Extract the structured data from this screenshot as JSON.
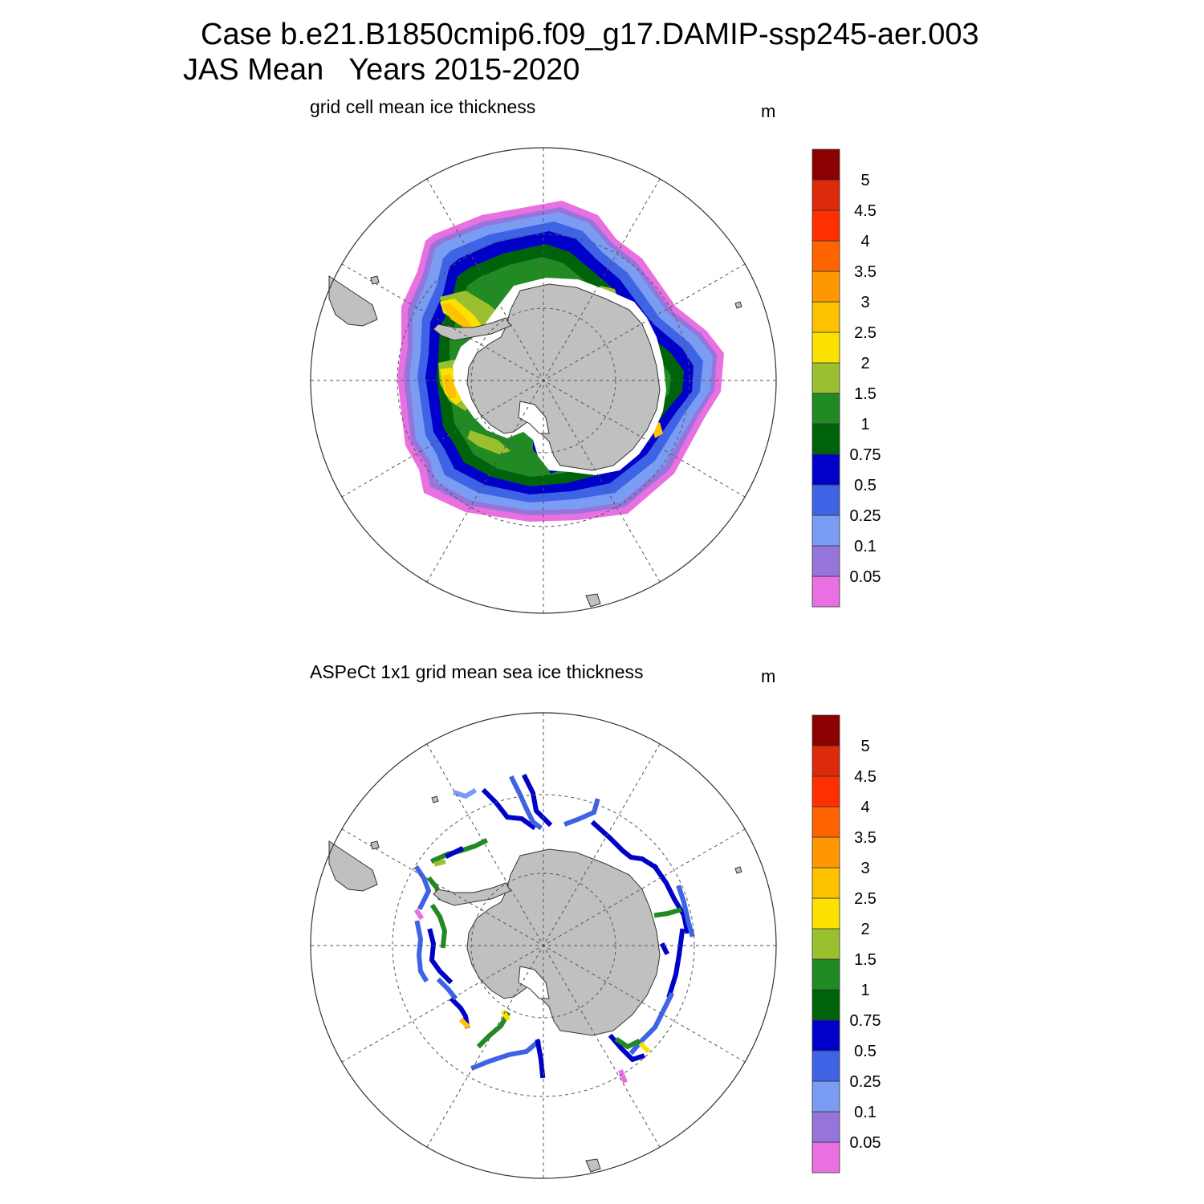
{
  "header": {
    "title_line1": "Case b.e21.B1850cmip6.f09_g17.DAMIP-ssp245-aer.003",
    "title_line2": "JAS Mean   Years 2015-2020"
  },
  "colors": {
    "land": "#c0c0c0",
    "grid_line": "#555555",
    "coast": "#333333",
    "colorbar": [
      "#e970e0",
      "#9575dc",
      "#7a9cf2",
      "#3e64e5",
      "#0000c8",
      "#00620a",
      "#218a22",
      "#9ac030",
      "#fbe100",
      "#ffc200",
      "#ff9800",
      "#ff6400",
      "#ff3000",
      "#dc2a0a",
      "#8b0000"
    ]
  },
  "panels": [
    {
      "id": "model",
      "subtitle": "grid cell mean ice thickness",
      "units": "m",
      "colorbar_labels": [
        "0.05",
        "0.1",
        "0.25",
        "0.5",
        "0.75",
        "1",
        "1.5",
        "2",
        "2.5",
        "3",
        "3.5",
        "4",
        "4.5",
        "5"
      ]
    },
    {
      "id": "observations",
      "subtitle": "ASPeCt 1x1 grid mean sea ice thickness",
      "units": "m",
      "colorbar_labels": [
        "0.05",
        "0.1",
        "0.25",
        "0.5",
        "0.75",
        "1",
        "1.5",
        "2",
        "2.5",
        "3",
        "3.5",
        "4",
        "4.5",
        "5"
      ]
    }
  ]
}
